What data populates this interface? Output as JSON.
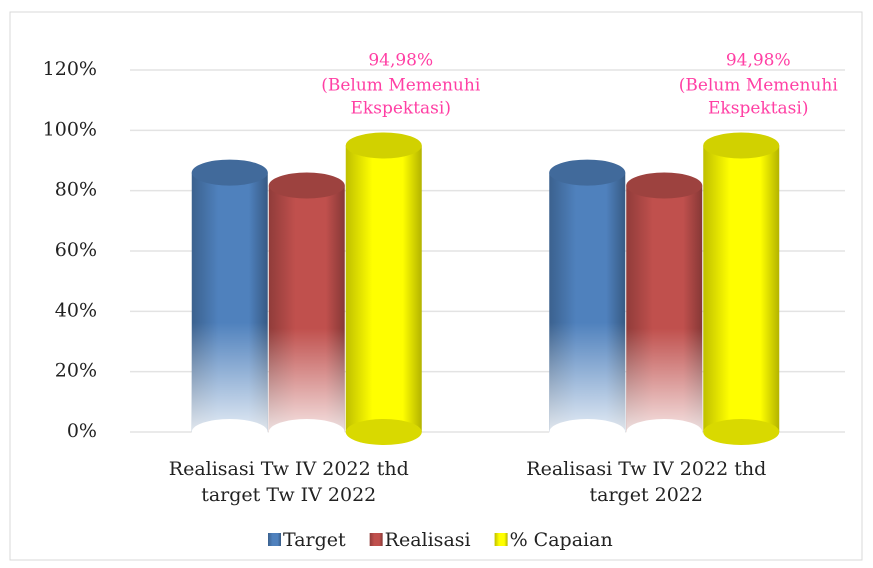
{
  "chart_data": {
    "type": "bar",
    "categories": [
      [
        "Realisasi Tw IV 2022 thd",
        "target Tw IV 2022"
      ],
      [
        "Realisasi Tw IV 2022 thd",
        "target 2022"
      ]
    ],
    "series": [
      {
        "name": "Target",
        "color": "#4f81bd",
        "values": [
          86,
          86
        ]
      },
      {
        "name": "Realisasi",
        "color": "#c0504d",
        "values": [
          81.7,
          81.7
        ]
      },
      {
        "name": "% Capaian",
        "color": "#ffff00",
        "values": [
          94.98,
          94.98
        ],
        "value_labels": [
          "94,98%",
          "94,98%"
        ]
      }
    ],
    "annotations": [
      [
        "(Belum Memenuhi",
        "Ekspektasi)"
      ],
      [
        "(Belum Memenuhi",
        "Ekspektasi)"
      ]
    ],
    "annotation_color": "#ff3fa4",
    "ylim": [
      0,
      120
    ],
    "yticks": [
      {
        "value": 0,
        "label": "0%"
      },
      {
        "value": 20,
        "label": "20%"
      },
      {
        "value": 40,
        "label": "40%"
      },
      {
        "value": 60,
        "label": "60%"
      },
      {
        "value": 80,
        "label": "80%"
      },
      {
        "value": 100,
        "label": "100%"
      },
      {
        "value": 120,
        "label": "120%"
      }
    ],
    "grid": true,
    "legend": "bottom"
  }
}
